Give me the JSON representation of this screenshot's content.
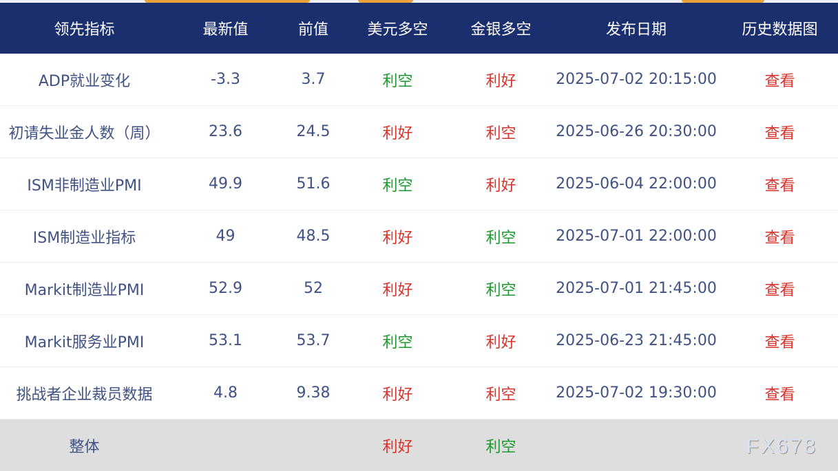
{
  "colors": {
    "header_bg": "#1b2f6e",
    "good": "#d9322b",
    "bad": "#1a9a2a",
    "text": "#3f5283",
    "total_bg": "#dedede"
  },
  "headers": [
    "领先指标",
    "最新值",
    "前值",
    "美元多空",
    "金银多空",
    "发布日期",
    "历史数据图"
  ],
  "rows": [
    {
      "name": "ADP就业变化",
      "latest": "-3.3",
      "prev": "3.7",
      "usd": "利空",
      "usd_type": "bad",
      "gold": "利好",
      "gold_type": "good",
      "date": "2025-07-02 20:15:00",
      "link": "查看"
    },
    {
      "name": "初请失业金人数（周）",
      "latest": "23.6",
      "prev": "24.5",
      "usd": "利好",
      "usd_type": "good",
      "gold": "利空",
      "gold_type": "good",
      "date": "2025-06-26 20:30:00",
      "link": "查看"
    },
    {
      "name": "ISM非制造业PMI",
      "latest": "49.9",
      "prev": "51.6",
      "usd": "利空",
      "usd_type": "bad",
      "gold": "利好",
      "gold_type": "good",
      "date": "2025-06-04 22:00:00",
      "link": "查看"
    },
    {
      "name": "ISM制造业指标",
      "latest": "49",
      "prev": "48.5",
      "usd": "利好",
      "usd_type": "good",
      "gold": "利空",
      "gold_type": "bad",
      "date": "2025-07-01 22:00:00",
      "link": "查看"
    },
    {
      "name": "Markit制造业PMI",
      "latest": "52.9",
      "prev": "52",
      "usd": "利好",
      "usd_type": "good",
      "gold": "利空",
      "gold_type": "bad",
      "date": "2025-07-01 21:45:00",
      "link": "查看"
    },
    {
      "name": "Markit服务业PMI",
      "latest": "53.1",
      "prev": "53.7",
      "usd": "利空",
      "usd_type": "bad",
      "gold": "利好",
      "gold_type": "good",
      "date": "2025-06-23 21:45:00",
      "link": "查看"
    },
    {
      "name": "挑战者企业裁员数据",
      "latest": "4.8",
      "prev": "9.38",
      "usd": "利好",
      "usd_type": "good",
      "gold": "利空",
      "gold_type": "good",
      "date": "2025-07-02 19:30:00",
      "link": "查看"
    }
  ],
  "total": {
    "label": "整体",
    "usd": "利好",
    "gold": "利空"
  },
  "watermark": "FX678"
}
